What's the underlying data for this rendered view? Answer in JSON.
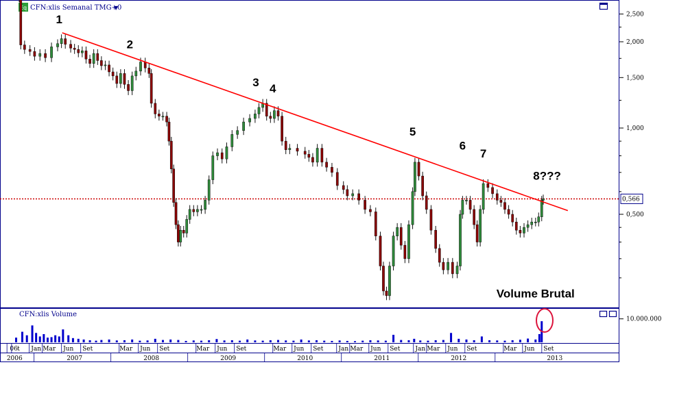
{
  "chart_data": [
    {
      "type": "candlestick",
      "title": "CFN:xlis Semanal TMG+0",
      "icon_label": "Eq",
      "y_scale": "log",
      "ylim": [
        0.25,
        2.9
      ],
      "y_ticks": [
        {
          "value": 2.5,
          "label": "2,500"
        },
        {
          "value": 2.0,
          "label": "2,000"
        },
        {
          "value": 1.5,
          "label": "1,500"
        },
        {
          "value": 1.0,
          "label": "1,000"
        },
        {
          "value": 0.5,
          "label": "0,500"
        }
      ],
      "current_price": {
        "value": 0.566,
        "label": "0,566"
      },
      "series": [
        {
          "values": [
            [
              2006.78,
              2.85
            ],
            [
              2006.8,
              1.95
            ],
            [
              2006.85,
              1.88
            ],
            [
              2006.92,
              1.85
            ],
            [
              2006.98,
              1.78
            ],
            [
              2007.05,
              1.82
            ],
            [
              2007.12,
              1.76
            ],
            [
              2007.2,
              1.92
            ],
            [
              2007.28,
              1.97
            ],
            [
              2007.33,
              2.05
            ],
            [
              2007.38,
              1.96
            ],
            [
              2007.45,
              1.9
            ],
            [
              2007.5,
              1.88
            ],
            [
              2007.55,
              1.83
            ],
            [
              2007.6,
              1.86
            ],
            [
              2007.65,
              1.74
            ],
            [
              2007.7,
              1.68
            ],
            [
              2007.75,
              1.82
            ],
            [
              2007.8,
              1.72
            ],
            [
              2007.85,
              1.65
            ],
            [
              2007.9,
              1.66
            ],
            [
              2007.95,
              1.57
            ],
            [
              2008.0,
              1.52
            ],
            [
              2008.05,
              1.43
            ],
            [
              2008.1,
              1.55
            ],
            [
              2008.15,
              1.42
            ],
            [
              2008.2,
              1.35
            ],
            [
              2008.25,
              1.52
            ],
            [
              2008.3,
              1.58
            ],
            [
              2008.36,
              1.7
            ],
            [
              2008.42,
              1.62
            ],
            [
              2008.47,
              1.55
            ],
            [
              2008.5,
              1.22
            ],
            [
              2008.55,
              1.12
            ],
            [
              2008.6,
              1.1
            ],
            [
              2008.65,
              1.1
            ],
            [
              2008.7,
              1.05
            ],
            [
              2008.73,
              0.9
            ],
            [
              2008.76,
              0.72
            ],
            [
              2008.79,
              0.55
            ],
            [
              2008.82,
              0.46
            ],
            [
              2008.85,
              0.4
            ],
            [
              2008.88,
              0.44
            ],
            [
              2008.92,
              0.43
            ],
            [
              2008.96,
              0.48
            ],
            [
              2009.0,
              0.52
            ],
            [
              2009.05,
              0.51
            ],
            [
              2009.1,
              0.52
            ],
            [
              2009.15,
              0.52
            ],
            [
              2009.2,
              0.56
            ],
            [
              2009.25,
              0.66
            ],
            [
              2009.3,
              0.8
            ],
            [
              2009.36,
              0.82
            ],
            [
              2009.42,
              0.78
            ],
            [
              2009.48,
              0.86
            ],
            [
              2009.55,
              0.95
            ],
            [
              2009.62,
              0.98
            ],
            [
              2009.7,
              1.05
            ],
            [
              2009.78,
              1.08
            ],
            [
              2009.85,
              1.12
            ],
            [
              2009.9,
              1.18
            ],
            [
              2009.95,
              1.22
            ],
            [
              2010.0,
              1.1
            ],
            [
              2010.05,
              1.08
            ],
            [
              2010.1,
              1.15
            ],
            [
              2010.15,
              1.1
            ],
            [
              2010.2,
              0.9
            ],
            [
              2010.25,
              0.84
            ],
            [
              2010.3,
              0.85
            ],
            [
              2010.4,
              0.83
            ],
            [
              2010.5,
              0.81
            ],
            [
              2010.55,
              0.79
            ],
            [
              2010.6,
              0.76
            ],
            [
              2010.66,
              0.85
            ],
            [
              2010.72,
              0.76
            ],
            [
              2010.78,
              0.73
            ],
            [
              2010.85,
              0.7
            ],
            [
              2010.92,
              0.63
            ],
            [
              2011.0,
              0.61
            ],
            [
              2011.05,
              0.58
            ],
            [
              2011.12,
              0.59
            ],
            [
              2011.2,
              0.56
            ],
            [
              2011.28,
              0.52
            ],
            [
              2011.35,
              0.51
            ],
            [
              2011.42,
              0.42
            ],
            [
              2011.48,
              0.33
            ],
            [
              2011.52,
              0.27
            ],
            [
              2011.56,
              0.26
            ],
            [
              2011.6,
              0.33
            ],
            [
              2011.65,
              0.42
            ],
            [
              2011.7,
              0.45
            ],
            [
              2011.75,
              0.39
            ],
            [
              2011.8,
              0.35
            ],
            [
              2011.85,
              0.46
            ],
            [
              2011.9,
              0.6
            ],
            [
              2011.93,
              0.76
            ],
            [
              2011.98,
              0.68
            ],
            [
              2012.03,
              0.58
            ],
            [
              2012.08,
              0.52
            ],
            [
              2012.14,
              0.44
            ],
            [
              2012.2,
              0.38
            ],
            [
              2012.25,
              0.34
            ],
            [
              2012.3,
              0.32
            ],
            [
              2012.36,
              0.34
            ],
            [
              2012.42,
              0.31
            ],
            [
              2012.48,
              0.33
            ],
            [
              2012.52,
              0.5
            ],
            [
              2012.55,
              0.56
            ],
            [
              2012.6,
              0.56
            ],
            [
              2012.65,
              0.52
            ],
            [
              2012.7,
              0.46
            ],
            [
              2012.74,
              0.4
            ],
            [
              2012.78,
              0.52
            ],
            [
              2012.82,
              0.64
            ],
            [
              2012.88,
              0.62
            ],
            [
              2012.94,
              0.59
            ],
            [
              2013.0,
              0.56
            ],
            [
              2013.05,
              0.55
            ],
            [
              2013.1,
              0.52
            ],
            [
              2013.15,
              0.5
            ],
            [
              2013.2,
              0.47
            ],
            [
              2013.25,
              0.44
            ],
            [
              2013.3,
              0.43
            ],
            [
              2013.35,
              0.45
            ],
            [
              2013.4,
              0.46
            ],
            [
              2013.45,
              0.47
            ],
            [
              2013.5,
              0.47
            ],
            [
              2013.54,
              0.49
            ],
            [
              2013.58,
              0.56
            ],
            [
              2013.6,
              0.566
            ]
          ]
        }
      ],
      "trendline": [
        [
          2007.34,
          2.15
        ],
        [
          2013.92,
          0.515
        ]
      ],
      "annotations": [
        {
          "label": "1",
          "x": 2007.3,
          "y": 2.32
        },
        {
          "label": "2",
          "x": 2008.22,
          "y": 1.9
        },
        {
          "label": "3",
          "x": 2009.86,
          "y": 1.4
        },
        {
          "label": "4",
          "x": 2010.08,
          "y": 1.33
        },
        {
          "label": "5",
          "x": 2011.9,
          "y": 0.94
        },
        {
          "label": "6",
          "x": 2012.55,
          "y": 0.84
        },
        {
          "label": "7",
          "x": 2012.82,
          "y": 0.79
        },
        {
          "label": "8???",
          "x": 2013.65,
          "y": 0.66
        },
        {
          "label": "Volume Brutal",
          "x": 2013.5,
          "y": 0.256
        }
      ]
    },
    {
      "type": "bar",
      "title": "CFN:xlis Volume",
      "y_ticks": [
        {
          "value": 10000000,
          "label": "10.000.000"
        }
      ],
      "ylim": [
        0,
        14000000
      ],
      "x": [
        2006.74,
        2006.82,
        2006.88,
        2006.95,
        2007.0,
        2007.05,
        2007.1,
        2007.15,
        2007.2,
        2007.25,
        2007.3,
        2007.35,
        2007.42,
        2007.48,
        2007.55,
        2007.62,
        2007.7,
        2007.78,
        2007.85,
        2007.95,
        2008.05,
        2008.15,
        2008.25,
        2008.35,
        2008.45,
        2008.55,
        2008.65,
        2008.75,
        2008.85,
        2008.95,
        2009.05,
        2009.15,
        2009.25,
        2009.35,
        2009.45,
        2009.55,
        2009.65,
        2009.75,
        2009.85,
        2009.95,
        2010.05,
        2010.15,
        2010.25,
        2010.35,
        2010.45,
        2010.55,
        2010.65,
        2010.75,
        2010.85,
        2010.95,
        2011.05,
        2011.15,
        2011.25,
        2011.35,
        2011.45,
        2011.55,
        2011.65,
        2011.75,
        2011.85,
        2011.92,
        2012.0,
        2012.1,
        2012.2,
        2012.3,
        2012.4,
        2012.5,
        2012.6,
        2012.7,
        2012.8,
        2012.9,
        2013.0,
        2013.1,
        2013.2,
        2013.3,
        2013.4,
        2013.5,
        2013.55,
        2013.58
      ],
      "values": [
        2000000,
        4500000,
        3000000,
        7200000,
        4000000,
        2500000,
        3500000,
        2000000,
        2200000,
        3000000,
        2500000,
        5500000,
        3000000,
        1800000,
        1500000,
        1200000,
        900000,
        700000,
        1000000,
        1200000,
        800000,
        900000,
        1200000,
        700000,
        800000,
        1500000,
        1000000,
        1200000,
        1000000,
        600000,
        800000,
        700000,
        900000,
        1400000,
        800000,
        900000,
        700000,
        1200000,
        800000,
        700000,
        900000,
        1000000,
        800000,
        700000,
        1200000,
        800000,
        900000,
        700000,
        600000,
        800000,
        600000,
        500000,
        700000,
        900000,
        800000,
        700000,
        3200000,
        1000000,
        900000,
        1500000,
        800000,
        700000,
        900000,
        1000000,
        4000000,
        1500000,
        1200000,
        900000,
        2500000,
        900000,
        800000,
        700000,
        900000,
        1100000,
        1600000,
        1200000,
        3500000,
        9000000
      ]
    }
  ],
  "x_axis": {
    "top_row": [
      {
        "label": "06",
        "x": 2006.71
      },
      {
        "label": "t",
        "x": 2006.77
      },
      {
        "label": "Jan",
        "x": 2007.0
      },
      {
        "label": "Mar",
        "x": 2007.17
      },
      {
        "label": "Jun",
        "x": 2007.42
      },
      {
        "label": "Set",
        "x": 2007.67
      },
      {
        "label": "Mar",
        "x": 2008.17
      },
      {
        "label": "Jun",
        "x": 2008.42
      },
      {
        "label": "Set",
        "x": 2008.67
      },
      {
        "label": "Mar",
        "x": 2009.17
      },
      {
        "label": "Jun",
        "x": 2009.42
      },
      {
        "label": "Set",
        "x": 2009.67
      },
      {
        "label": "Mar",
        "x": 2010.17
      },
      {
        "label": "Jun",
        "x": 2010.42
      },
      {
        "label": "Set",
        "x": 2010.67
      },
      {
        "label": "Jan",
        "x": 2011.0
      },
      {
        "label": "Mar",
        "x": 2011.17
      },
      {
        "label": "Jun",
        "x": 2011.42
      },
      {
        "label": "Set",
        "x": 2011.67
      },
      {
        "label": "Jan",
        "x": 2012.0
      },
      {
        "label": "Mar",
        "x": 2012.17
      },
      {
        "label": "Jun",
        "x": 2012.42
      },
      {
        "label": "Set",
        "x": 2012.67
      },
      {
        "label": "Mar",
        "x": 2013.17
      },
      {
        "label": "Jun",
        "x": 2013.42
      },
      {
        "label": "Set",
        "x": 2013.67
      }
    ],
    "bottom_row": [
      {
        "label": "2006",
        "x": 2006.72
      },
      {
        "label": "2007",
        "x": 2007.5
      },
      {
        "label": "2008",
        "x": 2008.5
      },
      {
        "label": "2009",
        "x": 2009.5
      },
      {
        "label": "2010",
        "x": 2010.5
      },
      {
        "label": "2011",
        "x": 2011.5
      },
      {
        "label": "2012",
        "x": 2012.5
      },
      {
        "label": "2013",
        "x": 2013.75
      }
    ]
  },
  "colors": {
    "title_text": "#00008b",
    "grid_frame": "#00008b",
    "trendline": "#ff0000",
    "price_line": "#cc0000",
    "candle_up": "#2e8b3a",
    "candle_down": "#8b0000",
    "volume": "#0000cd",
    "volume_highlight": "#dc143c",
    "icon_bg": "#2e9e3a"
  }
}
